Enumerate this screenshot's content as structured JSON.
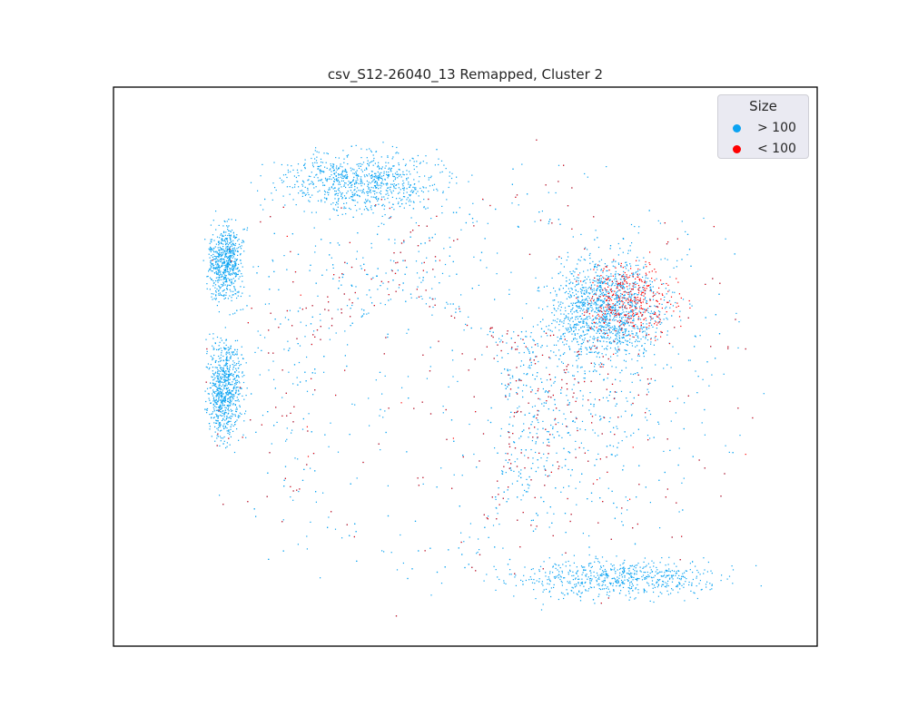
{
  "chart_data": {
    "type": "scatter",
    "title": "csv_S12-26040_13 Remapped, Cluster 2",
    "xlabel": "",
    "ylabel": "",
    "axes_visible": false,
    "grid": false,
    "legend": {
      "title": "Size",
      "placement": "top-right",
      "entries": [
        {
          "label": "> 100",
          "color": "#0ba3f2"
        },
        {
          "label": "< 100",
          "color": "#ff0000"
        }
      ]
    },
    "point_density_note_regions": [
      {
        "series": "> 100",
        "center": [
          0.47,
          0.53
        ],
        "spread": [
          0.4,
          0.36
        ],
        "density": 0.45
      },
      {
        "series": "> 100",
        "center": [
          0.05,
          0.55
        ],
        "spread": [
          0.03,
          0.1
        ],
        "density": 0.08
      },
      {
        "series": "> 100",
        "center": [
          0.05,
          0.3
        ],
        "spread": [
          0.03,
          0.08
        ],
        "density": 0.07
      },
      {
        "series": "> 100",
        "center": [
          0.7,
          0.39
        ],
        "spread": [
          0.1,
          0.1
        ],
        "density": 0.14
      },
      {
        "series": "> 100",
        "center": [
          0.28,
          0.14
        ],
        "spread": [
          0.14,
          0.06
        ],
        "density": 0.09
      },
      {
        "series": "> 100",
        "center": [
          0.72,
          0.92
        ],
        "spread": [
          0.18,
          0.04
        ],
        "density": 0.07
      },
      {
        "series": "< 100",
        "center": [
          0.47,
          0.53
        ],
        "spread": [
          0.4,
          0.36
        ],
        "density": 0.08
      },
      {
        "series": "< 100",
        "center": [
          0.74,
          0.37
        ],
        "spread": [
          0.08,
          0.08
        ],
        "density": 0.04
      }
    ]
  }
}
